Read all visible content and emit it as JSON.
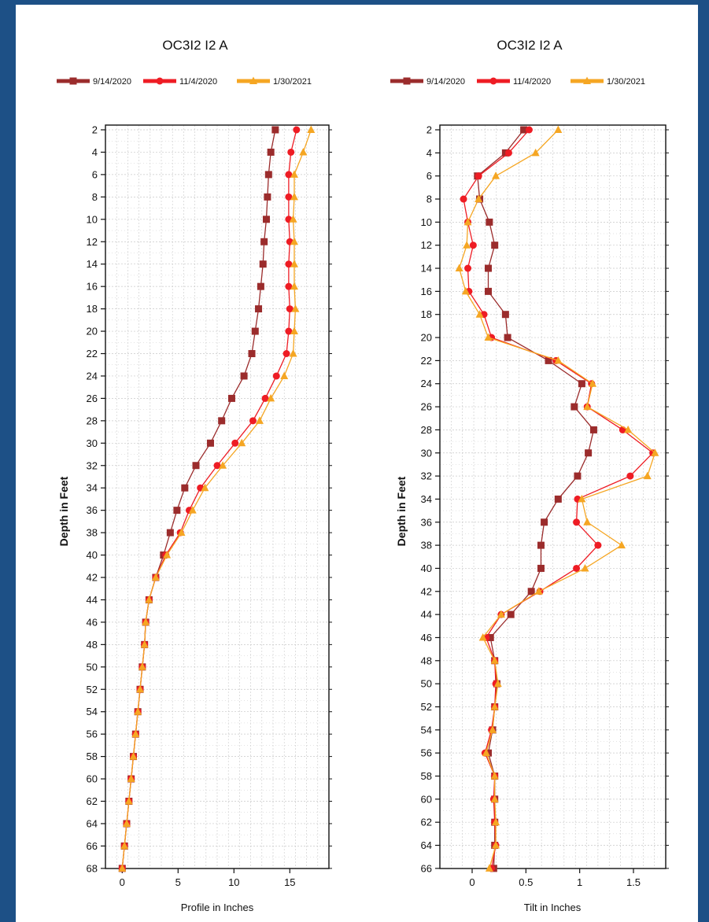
{
  "colors": {
    "frame": "#1d5086",
    "series": [
      "#9b2c2c",
      "#ee1c24",
      "#f5a623"
    ],
    "grid": "#c8c8c8"
  },
  "chart_data": [
    {
      "type": "line",
      "title": "OC3I2 I2 A",
      "xlabel": "Profile in Inches",
      "ylabel": "Depth in Feet",
      "xlim": [
        -1.5,
        18.5
      ],
      "ylim": [
        68,
        2
      ],
      "xticks": [
        0,
        5,
        10,
        15
      ],
      "yticks": [
        2,
        4,
        6,
        8,
        10,
        12,
        14,
        16,
        18,
        20,
        22,
        24,
        26,
        28,
        30,
        32,
        34,
        36,
        38,
        40,
        42,
        44,
        46,
        48,
        50,
        52,
        54,
        56,
        58,
        60,
        62,
        64,
        66,
        68
      ],
      "grid": true,
      "legend_position": "top",
      "y": [
        2,
        4,
        6,
        8,
        10,
        12,
        14,
        16,
        18,
        20,
        22,
        24,
        26,
        28,
        30,
        32,
        34,
        36,
        38,
        40,
        42,
        44,
        46,
        48,
        50,
        52,
        54,
        56,
        58,
        60,
        62,
        64,
        66,
        68
      ],
      "series": [
        {
          "name": "9/14/2020",
          "marker": "square",
          "x": [
            13.7,
            13.3,
            13.1,
            13.0,
            12.9,
            12.7,
            12.6,
            12.4,
            12.2,
            11.9,
            11.6,
            10.9,
            9.8,
            8.9,
            7.9,
            6.6,
            5.6,
            4.9,
            4.3,
            3.7,
            3.0,
            2.4,
            2.1,
            2.0,
            1.8,
            1.6,
            1.4,
            1.2,
            1.0,
            0.8,
            0.6,
            0.4,
            0.2,
            0.0
          ]
        },
        {
          "name": "11/4/2020",
          "marker": "circle",
          "x": [
            15.6,
            15.1,
            14.9,
            14.9,
            14.9,
            15.0,
            14.9,
            14.9,
            15.0,
            14.9,
            14.7,
            13.8,
            12.8,
            11.7,
            10.1,
            8.5,
            7.0,
            6.0,
            5.2,
            3.9,
            3.0,
            2.4,
            2.1,
            2.0,
            1.8,
            1.6,
            1.4,
            1.2,
            1.0,
            0.8,
            0.6,
            0.4,
            0.2,
            0.0
          ]
        },
        {
          "name": "1/30/2021",
          "marker": "triangle",
          "x": [
            16.9,
            16.2,
            15.4,
            15.4,
            15.3,
            15.4,
            15.4,
            15.4,
            15.5,
            15.4,
            15.3,
            14.5,
            13.3,
            12.3,
            10.7,
            9.0,
            7.4,
            6.3,
            5.3,
            4.0,
            3.0,
            2.4,
            2.1,
            2.0,
            1.8,
            1.6,
            1.4,
            1.2,
            1.0,
            0.8,
            0.6,
            0.4,
            0.2,
            0.0
          ]
        }
      ]
    },
    {
      "type": "line",
      "title": "OC3I2 I2 A",
      "xlabel": "Tilt in Inches",
      "ylabel": "Depth in Feet",
      "xlim": [
        -0.3,
        1.8
      ],
      "ylim": [
        66,
        2
      ],
      "xticks": [
        0,
        0.5,
        1,
        1.5
      ],
      "yticks": [
        2,
        4,
        6,
        8,
        10,
        12,
        14,
        16,
        18,
        20,
        22,
        24,
        26,
        28,
        30,
        32,
        34,
        36,
        38,
        40,
        42,
        44,
        46,
        48,
        50,
        52,
        54,
        56,
        58,
        60,
        62,
        64,
        66
      ],
      "grid": true,
      "legend_position": "top",
      "y": [
        2,
        4,
        6,
        8,
        10,
        12,
        14,
        16,
        18,
        20,
        22,
        24,
        26,
        28,
        30,
        32,
        34,
        36,
        38,
        40,
        42,
        44,
        46,
        48,
        50,
        52,
        54,
        56,
        58,
        60,
        62,
        64,
        66
      ],
      "series": [
        {
          "name": "9/14/2020",
          "marker": "square",
          "x": [
            0.48,
            0.31,
            0.05,
            0.07,
            0.16,
            0.21,
            0.15,
            0.15,
            0.31,
            0.33,
            0.71,
            1.02,
            0.95,
            1.13,
            1.08,
            0.98,
            0.8,
            0.67,
            0.64,
            0.64,
            0.55,
            0.36,
            0.17,
            0.21,
            0.23,
            0.21,
            0.19,
            0.15,
            0.21,
            0.21,
            0.21,
            0.21,
            0.2
          ]
        },
        {
          "name": "11/4/2020",
          "marker": "circle",
          "x": [
            0.53,
            0.34,
            0.06,
            -0.08,
            -0.04,
            0.01,
            -0.04,
            -0.03,
            0.11,
            0.18,
            0.78,
            1.11,
            1.07,
            1.4,
            1.68,
            1.47,
            0.98,
            0.97,
            1.17,
            0.97,
            0.63,
            0.27,
            0.13,
            0.21,
            0.22,
            0.21,
            0.18,
            0.12,
            0.21,
            0.2,
            0.21,
            0.22,
            0.18
          ]
        },
        {
          "name": "1/30/2021",
          "marker": "triangle",
          "x": [
            0.8,
            0.59,
            0.22,
            0.06,
            -0.04,
            -0.05,
            -0.12,
            -0.06,
            0.07,
            0.15,
            0.8,
            1.12,
            1.07,
            1.45,
            1.7,
            1.63,
            1.02,
            1.07,
            1.39,
            1.05,
            0.62,
            0.27,
            0.1,
            0.21,
            0.24,
            0.21,
            0.19,
            0.13,
            0.21,
            0.21,
            0.22,
            0.22,
            0.16
          ]
        }
      ]
    }
  ]
}
